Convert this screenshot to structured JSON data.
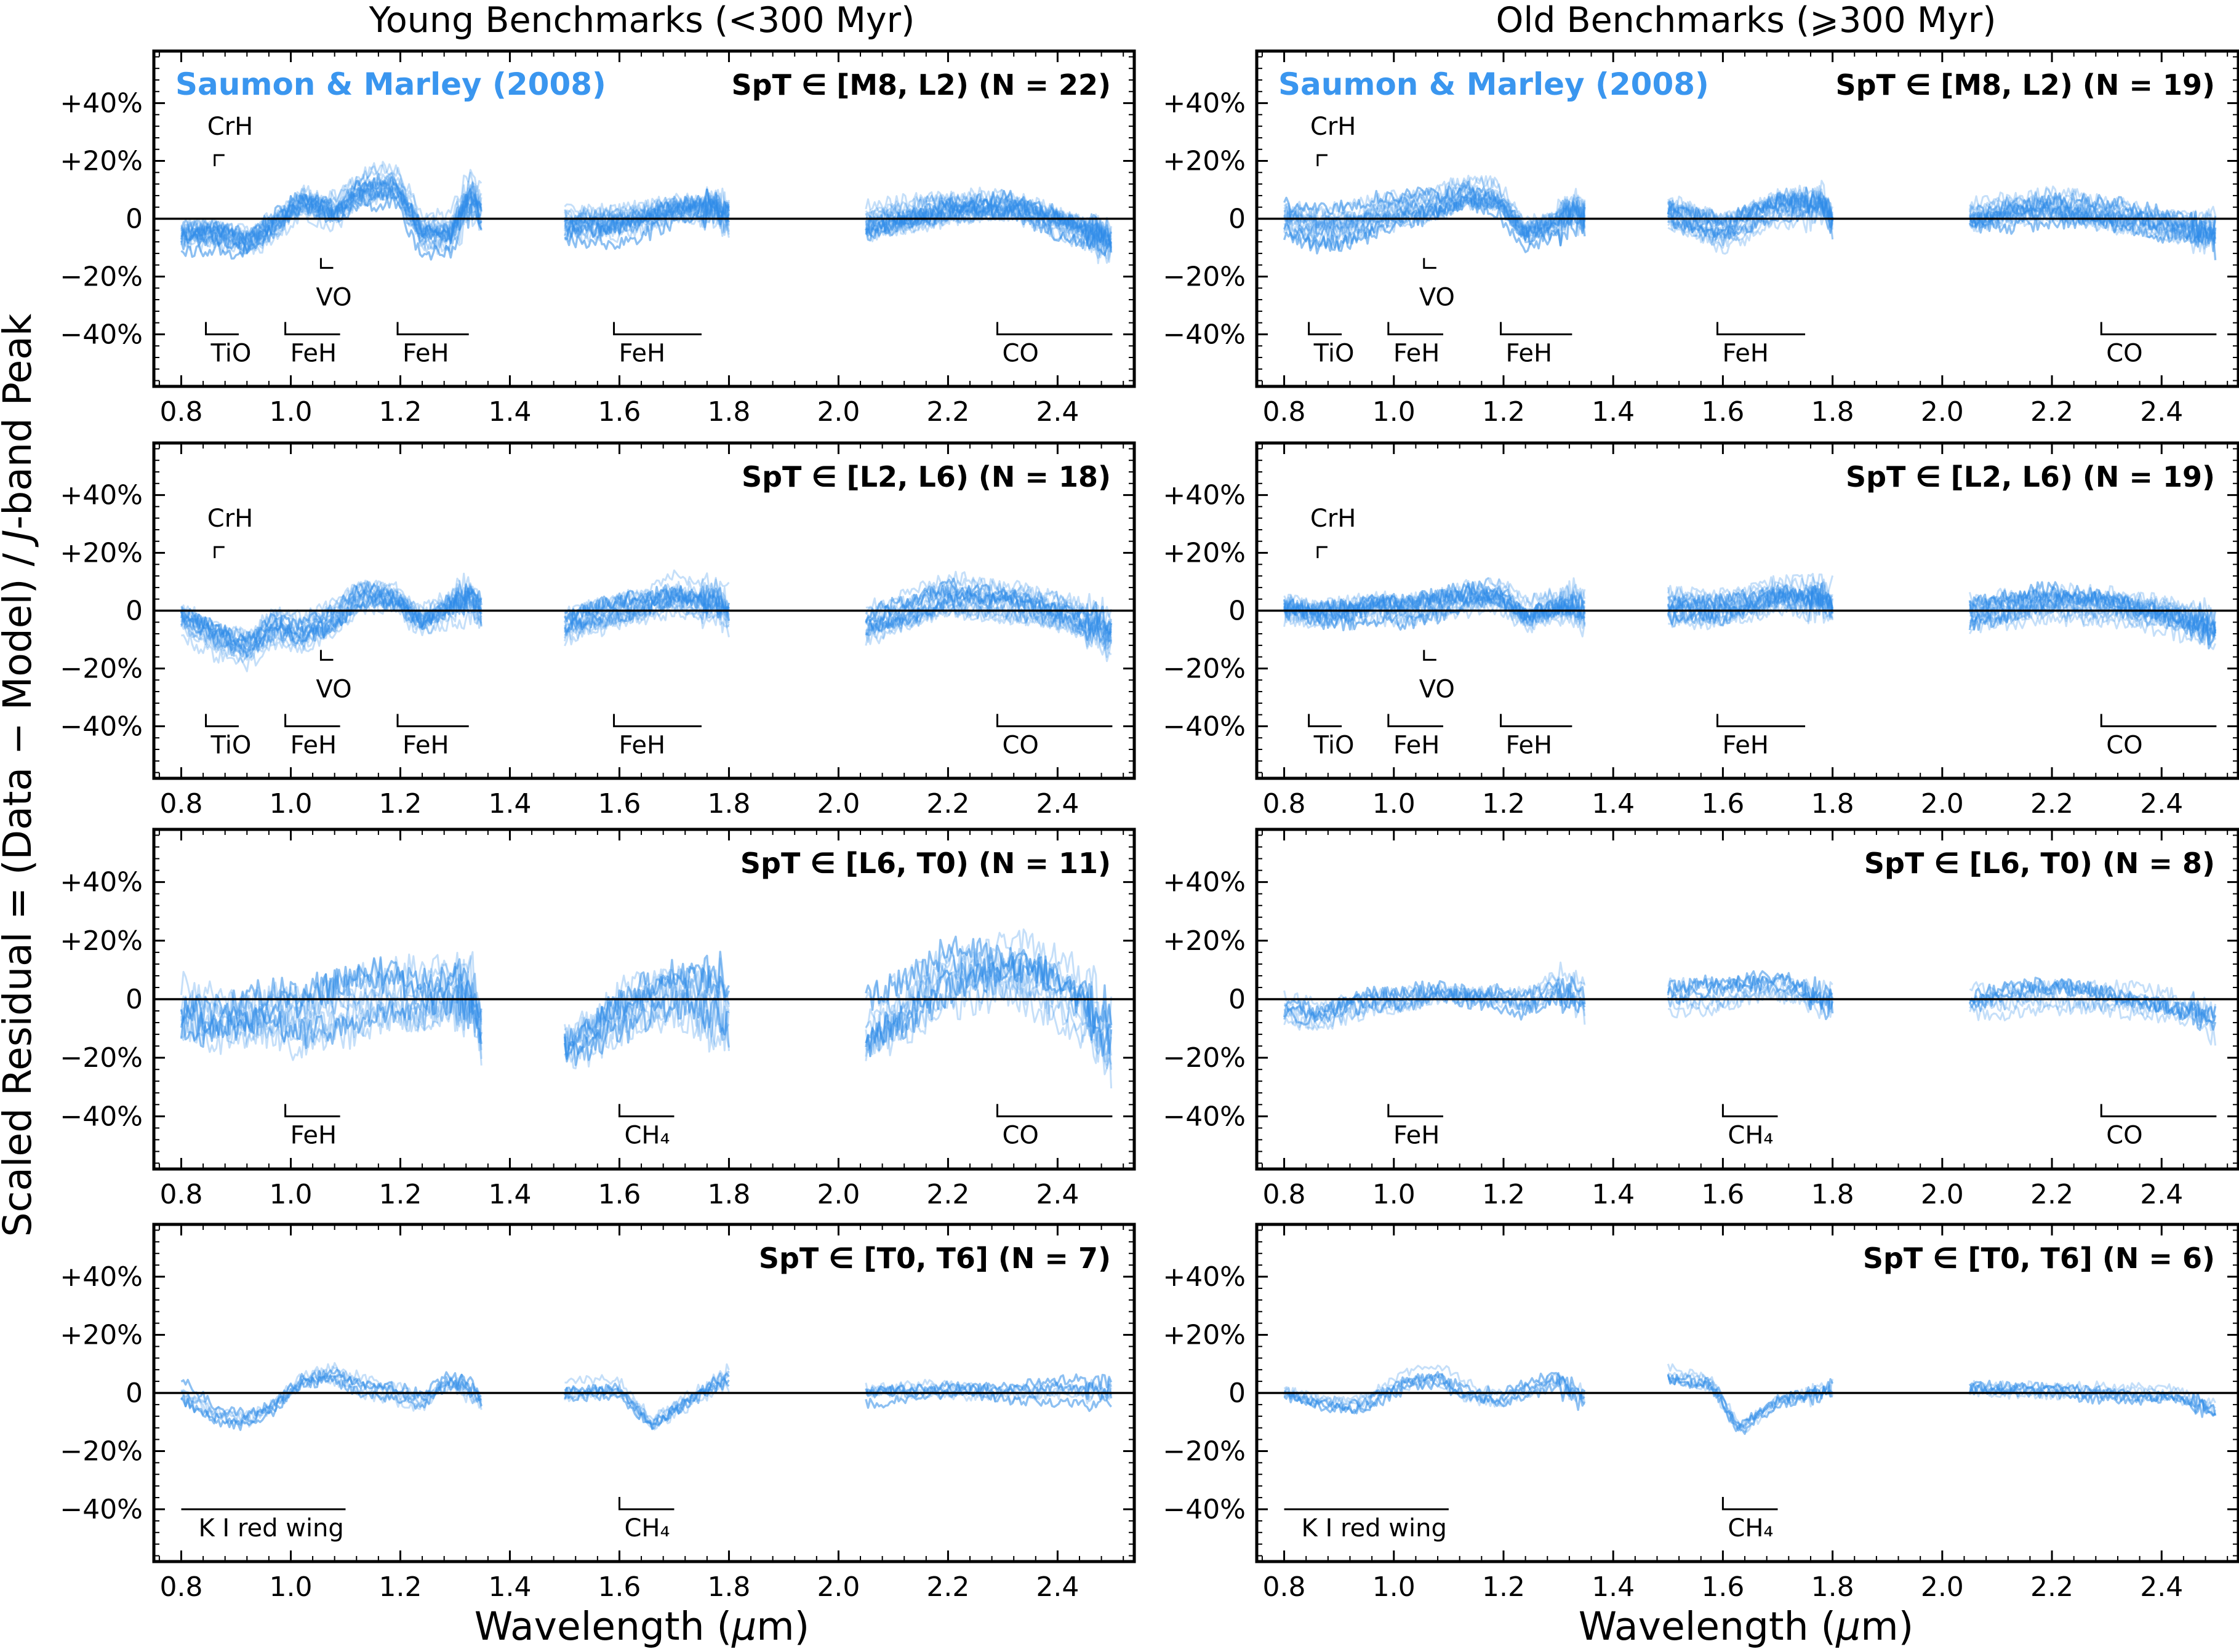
{
  "figure": {
    "column_titles": [
      "Young Benchmarks (<300 Myr)",
      "Old Benchmarks (⩾300 Myr)"
    ],
    "xlabel_prefix": "Wavelength (",
    "xlabel_unit": "μ",
    "xlabel_suffix": "m)",
    "ylabel": "Scaled Residual = (Data − Model) / J-band Peak",
    "ylabel_parts": [
      "Scaled Residual = (Data − Model) / ",
      "J",
      "-band Peak"
    ],
    "model_label": "Saumon & Marley (2008)",
    "series_color": "#3a96ef"
  },
  "axes": {
    "x_ticks": [
      0.8,
      1.0,
      1.2,
      1.4,
      1.6,
      1.8,
      2.0,
      2.2,
      2.4
    ],
    "x_tick_labels": [
      "0.8",
      "1.0",
      "1.2",
      "1.4",
      "1.6",
      "1.8",
      "2.0",
      "2.2",
      "2.4"
    ],
    "y_ticks": [
      -0.4,
      -0.2,
      0,
      0.2,
      0.4
    ],
    "y_tick_labels": [
      "−40%",
      "−20%",
      "0",
      "+20%",
      "+40%"
    ],
    "xlim": [
      0.75,
      2.54
    ],
    "ylim": [
      -0.58,
      0.58
    ]
  },
  "chart_data": [
    {
      "type": "line",
      "column": "young",
      "row": 0,
      "label": "SpT ∈ [M8, L2) (N = 22)",
      "show_model_label": true,
      "segments": [
        [
          0.8,
          1.35
        ],
        [
          1.5,
          1.8
        ],
        [
          2.05,
          2.5
        ]
      ],
      "n_curves": 22,
      "mean_residual": [
        [
          0.8,
          -0.06
        ],
        [
          0.86,
          -0.05
        ],
        [
          0.92,
          -0.08
        ],
        [
          0.97,
          -0.02
        ],
        [
          1.02,
          0.06
        ],
        [
          1.08,
          0.03
        ],
        [
          1.13,
          0.1
        ],
        [
          1.19,
          0.12
        ],
        [
          1.24,
          -0.05
        ],
        [
          1.29,
          -0.06
        ],
        [
          1.33,
          0.08
        ],
        [
          1.35,
          0.0
        ],
        [
          1.5,
          -0.03
        ],
        [
          1.6,
          -0.02
        ],
        [
          1.7,
          0.03
        ],
        [
          1.78,
          0.04
        ],
        [
          1.8,
          0.0
        ],
        [
          2.05,
          -0.02
        ],
        [
          2.2,
          0.03
        ],
        [
          2.32,
          0.03
        ],
        [
          2.42,
          -0.03
        ],
        [
          2.5,
          -0.08
        ]
      ],
      "scatter_amplitude": 0.06,
      "features": [
        {
          "name": "CrH",
          "type": "marker",
          "x": 0.861,
          "y": 0.22,
          "label_y": 0.32
        },
        {
          "name": "VO",
          "type": "marker_down",
          "x": 1.055,
          "y": -0.17,
          "label_y": -0.27
        },
        {
          "name": "TiO",
          "type": "band",
          "x1": 0.845,
          "x2": 0.905,
          "y": -0.4
        },
        {
          "name": "FeH",
          "type": "band",
          "x1": 0.99,
          "x2": 1.09,
          "y": -0.4
        },
        {
          "name": "FeH",
          "type": "band",
          "x1": 1.195,
          "x2": 1.325,
          "y": -0.4
        },
        {
          "name": "FeH",
          "type": "band",
          "x1": 1.59,
          "x2": 1.75,
          "y": -0.4
        },
        {
          "name": "CO",
          "type": "band",
          "x1": 2.29,
          "x2": 2.5,
          "y": -0.4
        }
      ]
    },
    {
      "type": "line",
      "column": "old",
      "row": 0,
      "label": "SpT ∈ [M8, L2) (N = 19)",
      "show_model_label": true,
      "segments": [
        [
          0.8,
          1.35
        ],
        [
          1.5,
          1.8
        ],
        [
          2.05,
          2.5
        ]
      ],
      "n_curves": 19,
      "mean_residual": [
        [
          0.8,
          0.0
        ],
        [
          0.86,
          -0.03
        ],
        [
          0.92,
          -0.02
        ],
        [
          0.97,
          0.01
        ],
        [
          1.02,
          0.03
        ],
        [
          1.08,
          0.04
        ],
        [
          1.13,
          0.08
        ],
        [
          1.19,
          0.06
        ],
        [
          1.24,
          -0.05
        ],
        [
          1.29,
          -0.02
        ],
        [
          1.33,
          0.03
        ],
        [
          1.35,
          0.0
        ],
        [
          1.5,
          0.01
        ],
        [
          1.6,
          -0.05
        ],
        [
          1.7,
          0.04
        ],
        [
          1.78,
          0.06
        ],
        [
          1.8,
          0.0
        ],
        [
          2.05,
          -0.01
        ],
        [
          2.2,
          0.03
        ],
        [
          2.32,
          0.01
        ],
        [
          2.42,
          -0.02
        ],
        [
          2.5,
          -0.05
        ]
      ],
      "scatter_amplitude": 0.06,
      "features": [
        {
          "name": "CrH",
          "type": "marker",
          "x": 0.861,
          "y": 0.22,
          "label_y": 0.32
        },
        {
          "name": "VO",
          "type": "marker_down",
          "x": 1.055,
          "y": -0.17,
          "label_y": -0.27
        },
        {
          "name": "TiO",
          "type": "band",
          "x1": 0.845,
          "x2": 0.905,
          "y": -0.4
        },
        {
          "name": "FeH",
          "type": "band",
          "x1": 0.99,
          "x2": 1.09,
          "y": -0.4
        },
        {
          "name": "FeH",
          "type": "band",
          "x1": 1.195,
          "x2": 1.325,
          "y": -0.4
        },
        {
          "name": "FeH",
          "type": "band",
          "x1": 1.59,
          "x2": 1.75,
          "y": -0.4
        },
        {
          "name": "CO",
          "type": "band",
          "x1": 2.29,
          "x2": 2.5,
          "y": -0.4
        }
      ]
    },
    {
      "type": "line",
      "column": "young",
      "row": 1,
      "label": "SpT ∈ [L2, L6) (N = 18)",
      "show_model_label": false,
      "segments": [
        [
          0.8,
          1.35
        ],
        [
          1.5,
          1.8
        ],
        [
          2.05,
          2.5
        ]
      ],
      "n_curves": 18,
      "mean_residual": [
        [
          0.8,
          -0.02
        ],
        [
          0.86,
          -0.08
        ],
        [
          0.92,
          -0.12
        ],
        [
          0.97,
          -0.05
        ],
        [
          1.02,
          -0.08
        ],
        [
          1.08,
          -0.03
        ],
        [
          1.13,
          0.05
        ],
        [
          1.19,
          0.04
        ],
        [
          1.24,
          -0.04
        ],
        [
          1.29,
          0.02
        ],
        [
          1.33,
          0.05
        ],
        [
          1.35,
          0.0
        ],
        [
          1.5,
          -0.05
        ],
        [
          1.6,
          0.01
        ],
        [
          1.7,
          0.06
        ],
        [
          1.78,
          0.03
        ],
        [
          1.8,
          0.0
        ],
        [
          2.05,
          -0.06
        ],
        [
          2.2,
          0.05
        ],
        [
          2.32,
          0.02
        ],
        [
          2.42,
          -0.03
        ],
        [
          2.5,
          -0.09
        ]
      ],
      "scatter_amplitude": 0.06,
      "features": [
        {
          "name": "CrH",
          "type": "marker",
          "x": 0.861,
          "y": 0.22,
          "label_y": 0.32
        },
        {
          "name": "VO",
          "type": "marker_down",
          "x": 1.055,
          "y": -0.17,
          "label_y": -0.27
        },
        {
          "name": "TiO",
          "type": "band",
          "x1": 0.845,
          "x2": 0.905,
          "y": -0.4
        },
        {
          "name": "FeH",
          "type": "band",
          "x1": 0.99,
          "x2": 1.09,
          "y": -0.4
        },
        {
          "name": "FeH",
          "type": "band",
          "x1": 1.195,
          "x2": 1.325,
          "y": -0.4
        },
        {
          "name": "FeH",
          "type": "band",
          "x1": 1.59,
          "x2": 1.75,
          "y": -0.4
        },
        {
          "name": "CO",
          "type": "band",
          "x1": 2.29,
          "x2": 2.5,
          "y": -0.4
        }
      ]
    },
    {
      "type": "line",
      "column": "old",
      "row": 1,
      "label": "SpT ∈ [L2, L6) (N = 19)",
      "show_model_label": false,
      "segments": [
        [
          0.8,
          1.35
        ],
        [
          1.5,
          1.8
        ],
        [
          2.05,
          2.5
        ]
      ],
      "n_curves": 19,
      "mean_residual": [
        [
          0.8,
          0.0
        ],
        [
          0.86,
          -0.02
        ],
        [
          0.92,
          -0.01
        ],
        [
          0.97,
          0.01
        ],
        [
          1.02,
          0.0
        ],
        [
          1.08,
          0.02
        ],
        [
          1.13,
          0.04
        ],
        [
          1.19,
          0.05
        ],
        [
          1.24,
          -0.02
        ],
        [
          1.29,
          0.01
        ],
        [
          1.33,
          0.02
        ],
        [
          1.35,
          0.0
        ],
        [
          1.5,
          0.01
        ],
        [
          1.6,
          0.0
        ],
        [
          1.7,
          0.04
        ],
        [
          1.78,
          0.03
        ],
        [
          1.8,
          0.0
        ],
        [
          2.05,
          -0.02
        ],
        [
          2.2,
          0.03
        ],
        [
          2.32,
          0.02
        ],
        [
          2.42,
          -0.02
        ],
        [
          2.5,
          -0.07
        ]
      ],
      "scatter_amplitude": 0.06,
      "features": [
        {
          "name": "CrH",
          "type": "marker",
          "x": 0.861,
          "y": 0.22,
          "label_y": 0.32
        },
        {
          "name": "VO",
          "type": "marker_down",
          "x": 1.055,
          "y": -0.17,
          "label_y": -0.27
        },
        {
          "name": "TiO",
          "type": "band",
          "x1": 0.845,
          "x2": 0.905,
          "y": -0.4
        },
        {
          "name": "FeH",
          "type": "band",
          "x1": 0.99,
          "x2": 1.09,
          "y": -0.4
        },
        {
          "name": "FeH",
          "type": "band",
          "x1": 1.195,
          "x2": 1.325,
          "y": -0.4
        },
        {
          "name": "FeH",
          "type": "band",
          "x1": 1.59,
          "x2": 1.75,
          "y": -0.4
        },
        {
          "name": "CO",
          "type": "band",
          "x1": 2.29,
          "x2": 2.5,
          "y": -0.4
        }
      ]
    },
    {
      "type": "line",
      "column": "young",
      "row": 2,
      "label": "SpT ∈ [L6, T0) (N = 11)",
      "show_model_label": false,
      "segments": [
        [
          0.8,
          1.35
        ],
        [
          1.5,
          1.8
        ],
        [
          2.05,
          2.5
        ]
      ],
      "n_curves": 11,
      "mean_residual": [
        [
          0.8,
          -0.05
        ],
        [
          0.86,
          -0.08
        ],
        [
          0.92,
          -0.05
        ],
        [
          0.97,
          -0.03
        ],
        [
          1.02,
          -0.04
        ],
        [
          1.08,
          0.0
        ],
        [
          1.13,
          0.02
        ],
        [
          1.19,
          0.03
        ],
        [
          1.24,
          0.0
        ],
        [
          1.29,
          0.02
        ],
        [
          1.33,
          0.0
        ],
        [
          1.35,
          -0.1
        ],
        [
          1.5,
          -0.15
        ],
        [
          1.6,
          -0.02
        ],
        [
          1.7,
          0.05
        ],
        [
          1.78,
          -0.02
        ],
        [
          1.8,
          -0.05
        ],
        [
          2.05,
          -0.12
        ],
        [
          2.2,
          0.08
        ],
        [
          2.32,
          0.1
        ],
        [
          2.42,
          0.02
        ],
        [
          2.5,
          -0.15
        ]
      ],
      "scatter_amplitude": 0.12,
      "features": [
        {
          "name": "FeH",
          "type": "band",
          "x1": 0.99,
          "x2": 1.09,
          "y": -0.4
        },
        {
          "name": "CH₄",
          "type": "band",
          "x1": 1.6,
          "x2": 1.7,
          "y": -0.4
        },
        {
          "name": "CO",
          "type": "band",
          "x1": 2.29,
          "x2": 2.5,
          "y": -0.4
        }
      ]
    },
    {
      "type": "line",
      "column": "old",
      "row": 2,
      "label": "SpT ∈ [L6, T0) (N = 8)",
      "show_model_label": false,
      "segments": [
        [
          0.8,
          1.35
        ],
        [
          1.5,
          1.8
        ],
        [
          2.05,
          2.5
        ]
      ],
      "n_curves": 8,
      "mean_residual": [
        [
          0.8,
          -0.03
        ],
        [
          0.86,
          -0.05
        ],
        [
          0.92,
          -0.02
        ],
        [
          0.97,
          0.0
        ],
        [
          1.02,
          0.0
        ],
        [
          1.08,
          0.02
        ],
        [
          1.13,
          0.0
        ],
        [
          1.19,
          0.0
        ],
        [
          1.24,
          -0.02
        ],
        [
          1.29,
          0.03
        ],
        [
          1.33,
          0.02
        ],
        [
          1.35,
          -0.02
        ],
        [
          1.5,
          0.02
        ],
        [
          1.6,
          0.03
        ],
        [
          1.7,
          0.05
        ],
        [
          1.78,
          0.0
        ],
        [
          1.8,
          0.0
        ],
        [
          2.05,
          -0.01
        ],
        [
          2.2,
          0.02
        ],
        [
          2.32,
          0.01
        ],
        [
          2.42,
          -0.01
        ],
        [
          2.5,
          -0.06
        ]
      ],
      "scatter_amplitude": 0.06,
      "features": [
        {
          "name": "FeH",
          "type": "band",
          "x1": 0.99,
          "x2": 1.09,
          "y": -0.4
        },
        {
          "name": "CH₄",
          "type": "band",
          "x1": 1.6,
          "x2": 1.7,
          "y": -0.4
        },
        {
          "name": "CO",
          "type": "band",
          "x1": 2.29,
          "x2": 2.5,
          "y": -0.4
        }
      ]
    },
    {
      "type": "line",
      "column": "young",
      "row": 3,
      "label": "SpT ∈ [T0, T6] (N = 7)",
      "show_model_label": false,
      "segments": [
        [
          0.8,
          1.35
        ],
        [
          1.5,
          1.8
        ],
        [
          2.05,
          2.5
        ]
      ],
      "n_curves": 7,
      "mean_residual": [
        [
          0.8,
          0.0
        ],
        [
          0.86,
          -0.08
        ],
        [
          0.92,
          -0.1
        ],
        [
          0.97,
          -0.05
        ],
        [
          1.02,
          0.04
        ],
        [
          1.08,
          0.06
        ],
        [
          1.13,
          0.02
        ],
        [
          1.19,
          0.0
        ],
        [
          1.24,
          -0.03
        ],
        [
          1.29,
          0.03
        ],
        [
          1.33,
          0.0
        ],
        [
          1.35,
          -0.05
        ],
        [
          1.5,
          0.0
        ],
        [
          1.6,
          0.02
        ],
        [
          1.66,
          -0.1
        ],
        [
          1.72,
          -0.03
        ],
        [
          1.8,
          0.05
        ],
        [
          2.05,
          0.0
        ],
        [
          2.2,
          0.01
        ],
        [
          2.32,
          0.0
        ],
        [
          2.42,
          0.01
        ],
        [
          2.5,
          0.0
        ]
      ],
      "scatter_amplitude": 0.04,
      "features": [
        {
          "name": "K I red wing",
          "type": "band_flat",
          "x1": 0.8,
          "x2": 1.1,
          "y": -0.4
        },
        {
          "name": "CH₄",
          "type": "band",
          "x1": 1.6,
          "x2": 1.7,
          "y": -0.4
        }
      ]
    },
    {
      "type": "line",
      "column": "old",
      "row": 3,
      "label": "SpT ∈ [T0, T6] (N = 6)",
      "show_model_label": false,
      "segments": [
        [
          0.8,
          1.35
        ],
        [
          1.5,
          1.8
        ],
        [
          2.05,
          2.5
        ]
      ],
      "n_curves": 6,
      "mean_residual": [
        [
          0.8,
          0.0
        ],
        [
          0.86,
          -0.03
        ],
        [
          0.92,
          -0.05
        ],
        [
          0.97,
          -0.02
        ],
        [
          1.02,
          0.03
        ],
        [
          1.08,
          0.05
        ],
        [
          1.13,
          0.0
        ],
        [
          1.19,
          -0.02
        ],
        [
          1.24,
          0.01
        ],
        [
          1.29,
          0.04
        ],
        [
          1.33,
          0.0
        ],
        [
          1.35,
          -0.03
        ],
        [
          1.5,
          0.05
        ],
        [
          1.58,
          0.03
        ],
        [
          1.63,
          -0.12
        ],
        [
          1.7,
          -0.02
        ],
        [
          1.8,
          0.02
        ],
        [
          2.05,
          0.01
        ],
        [
          2.2,
          0.01
        ],
        [
          2.32,
          0.0
        ],
        [
          2.42,
          0.0
        ],
        [
          2.5,
          -0.05
        ]
      ],
      "scatter_amplitude": 0.04,
      "features": [
        {
          "name": "K I red wing",
          "type": "band_flat",
          "x1": 0.8,
          "x2": 1.1,
          "y": -0.4
        },
        {
          "name": "CH₄",
          "type": "band",
          "x1": 1.6,
          "x2": 1.7,
          "y": -0.4
        }
      ]
    }
  ]
}
